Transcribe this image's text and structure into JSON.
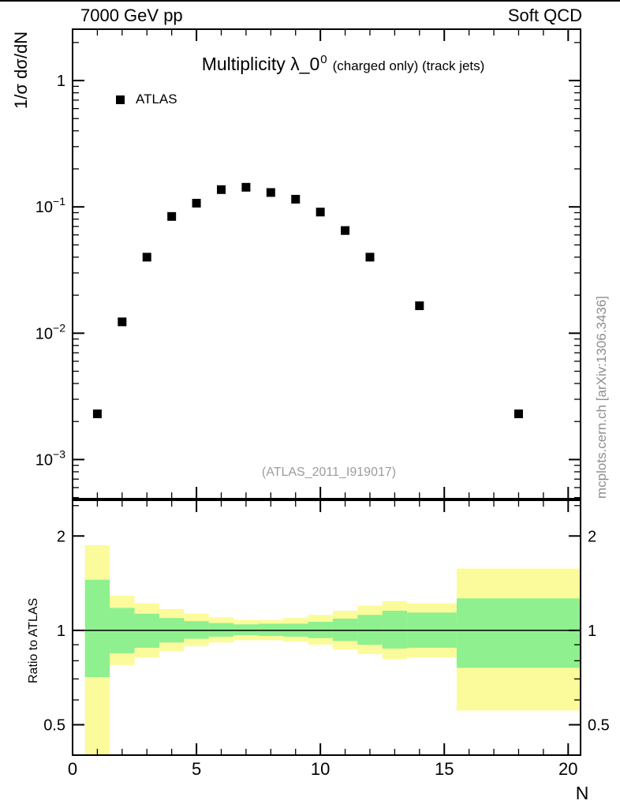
{
  "header": {
    "left": "7000 GeV pp",
    "right": "Soft QCD"
  },
  "title": {
    "main": "Multiplicity λ_0",
    "sup": "0",
    "suffix": "(charged only) (track jets)"
  },
  "legend": {
    "label": "ATLAS",
    "marker_color": "#000000",
    "marker_shape": "filled-square"
  },
  "annotations": {
    "watermark": "(ATLAS_2011_I919017)",
    "side_text": "mcplots.cern.ch [arXiv:1306.3436]"
  },
  "axes": {
    "main_ylabel": "1/σ dσ/dN",
    "ratio_ylabel": "Ratio to ATLAS",
    "xlabel": "N",
    "x_ticks": [
      0,
      5,
      10,
      15,
      20
    ],
    "x_minor_step": 1,
    "main_y_ticks": [
      {
        "value": 1,
        "base": "1",
        "exp": ""
      },
      {
        "value": 0.1,
        "base": "10",
        "exp": "−1"
      },
      {
        "value": 0.01,
        "base": "10",
        "exp": "−2"
      },
      {
        "value": 0.001,
        "base": "10",
        "exp": "−3"
      }
    ],
    "ratio_y_ticks": [
      {
        "value": 2,
        "label": "2"
      },
      {
        "value": 1,
        "label": "1"
      },
      {
        "value": 0.5,
        "label": "0.5"
      }
    ]
  },
  "chart_data": [
    {
      "type": "scatter",
      "name": "main-distribution",
      "series_label": "ATLAS",
      "marker": "filled-square",
      "marker_color": "#000000",
      "marker_size": 11,
      "x": [
        1,
        2,
        3,
        4,
        5,
        6,
        7,
        8,
        9,
        10,
        11,
        12,
        14,
        18
      ],
      "y": [
        0.0023,
        0.0123,
        0.04,
        0.084,
        0.107,
        0.137,
        0.143,
        0.13,
        0.115,
        0.091,
        0.065,
        0.04,
        0.0165,
        0.0023
      ],
      "xlim": [
        0,
        20.5
      ],
      "ylim_log": [
        0.00049,
        2.55
      ],
      "xlabel": "N",
      "ylabel": "1/σ dσ/dN",
      "title": "Multiplicity λ_0^0 (charged only) (track jets)",
      "legend_position": "top-left-inside",
      "grid": false
    },
    {
      "type": "ratio-bands",
      "name": "ratio-to-atlas",
      "ylabel": "Ratio to ATLAS",
      "ylim_log": [
        0.4,
        2.6
      ],
      "reference_line": 1,
      "band_colors": {
        "outer": "#fbfb9b",
        "inner": "#8ef08e"
      },
      "major_ticks": [
        0.5,
        1,
        2
      ],
      "minor_ticks": [
        0.4,
        0.6,
        0.7,
        0.8,
        0.9,
        2.5
      ],
      "bins": [
        {
          "x0": 0.5,
          "x1": 1.5,
          "outer": [
            0.4,
            1.87
          ],
          "inner": [
            0.71,
            1.45
          ]
        },
        {
          "x0": 1.5,
          "x1": 2.5,
          "outer": [
            0.775,
            1.29
          ],
          "inner": [
            0.845,
            1.18
          ]
        },
        {
          "x0": 2.5,
          "x1": 3.5,
          "outer": [
            0.82,
            1.22
          ],
          "inner": [
            0.88,
            1.13
          ]
        },
        {
          "x0": 3.5,
          "x1": 4.5,
          "outer": [
            0.86,
            1.17
          ],
          "inner": [
            0.915,
            1.095
          ]
        },
        {
          "x0": 4.5,
          "x1": 5.5,
          "outer": [
            0.89,
            1.13
          ],
          "inner": [
            0.94,
            1.07
          ]
        },
        {
          "x0": 5.5,
          "x1": 6.5,
          "outer": [
            0.915,
            1.1
          ],
          "inner": [
            0.955,
            1.055
          ]
        },
        {
          "x0": 6.5,
          "x1": 7.5,
          "outer": [
            0.93,
            1.08
          ],
          "inner": [
            0.965,
            1.045
          ]
        },
        {
          "x0": 7.5,
          "x1": 8.5,
          "outer": [
            0.93,
            1.08
          ],
          "inner": [
            0.96,
            1.05
          ]
        },
        {
          "x0": 8.5,
          "x1": 9.5,
          "outer": [
            0.92,
            1.095
          ],
          "inner": [
            0.955,
            1.05
          ]
        },
        {
          "x0": 9.5,
          "x1": 10.5,
          "outer": [
            0.9,
            1.12
          ],
          "inner": [
            0.945,
            1.065
          ]
        },
        {
          "x0": 10.5,
          "x1": 11.5,
          "outer": [
            0.87,
            1.155
          ],
          "inner": [
            0.925,
            1.09
          ]
        },
        {
          "x0": 11.5,
          "x1": 12.5,
          "outer": [
            0.84,
            1.2
          ],
          "inner": [
            0.9,
            1.12
          ]
        },
        {
          "x0": 12.5,
          "x1": 13.5,
          "outer": [
            0.81,
            1.24
          ],
          "inner": [
            0.875,
            1.155
          ]
        },
        {
          "x0": 13.5,
          "x1": 15.5,
          "outer": [
            0.82,
            1.22
          ],
          "inner": [
            0.88,
            1.14
          ]
        },
        {
          "x0": 15.5,
          "x1": 20.5,
          "outer": [
            0.555,
            1.575
          ],
          "inner": [
            0.76,
            1.265
          ]
        }
      ]
    }
  ]
}
